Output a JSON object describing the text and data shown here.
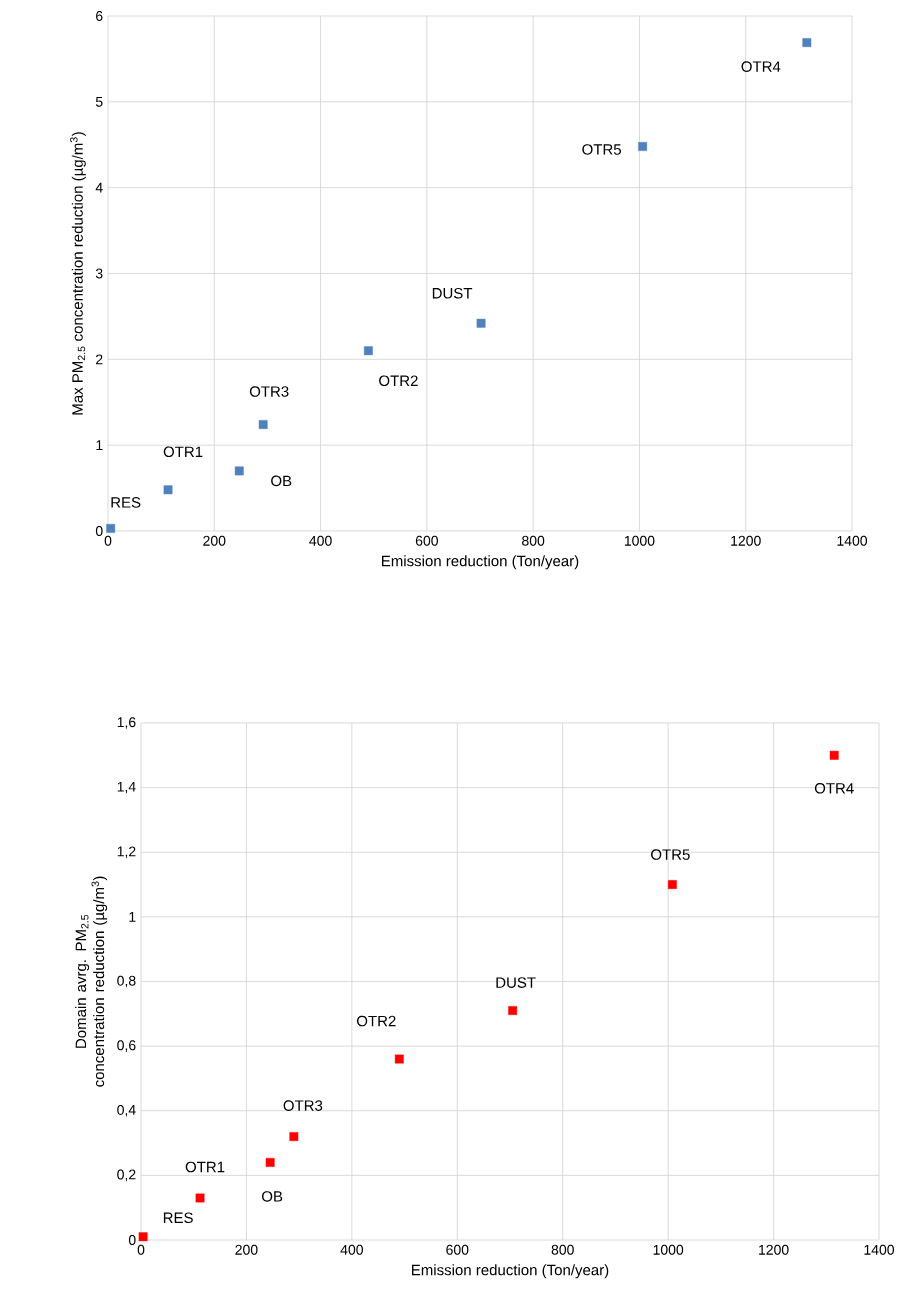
{
  "chart_data": [
    {
      "type": "scatter",
      "xlabel": "Emission reduction (Ton/year)",
      "ylabel": "Max PM$_{2.5}$ concentration reduction (µg/m$^{3}$)",
      "x": [
        5,
        113,
        247,
        292,
        490,
        702,
        1006,
        1315
      ],
      "values": [
        0.03,
        0.48,
        0.7,
        1.24,
        2.1,
        2.42,
        4.48,
        5.69
      ],
      "color": "#4f81bd",
      "marker": "square",
      "grid": true,
      "xlim": [
        0,
        1400
      ],
      "xticks": [
        0,
        200,
        400,
        600,
        800,
        1000,
        1200,
        1400
      ],
      "ylim": [
        0,
        6
      ],
      "yticks": [
        0,
        1,
        2,
        3,
        4,
        5,
        6
      ],
      "annotations": [
        {
          "text": "RES",
          "x": 5,
          "y": 0.03
        },
        {
          "text": "OTR1",
          "x": 113,
          "y": 0.48
        },
        {
          "text": "OB",
          "x": 247,
          "y": 0.7
        },
        {
          "text": "OTR3",
          "x": 292,
          "y": 1.24
        },
        {
          "text": "OTR2",
          "x": 490,
          "y": 2.1
        },
        {
          "text": "DUST",
          "x": 702,
          "y": 2.42
        },
        {
          "text": "OTR5",
          "x": 1006,
          "y": 4.48
        },
        {
          "text": "OTR4",
          "x": 1315,
          "y": 5.69
        }
      ]
    },
    {
      "type": "scatter",
      "xlabel": "Emission reduction (Ton/year)",
      "ylabel": "Domain avrg. PM$_{2.5}$ concentration reduction (µg/m$^{3}$)",
      "x": [
        4,
        112,
        245,
        290,
        490,
        705,
        1008,
        1315
      ],
      "values": [
        0.01,
        0.13,
        0.24,
        0.32,
        0.56,
        0.71,
        1.1,
        1.5
      ],
      "color": "#ff0000",
      "marker": "square",
      "grid": true,
      "xlim": [
        0,
        1400
      ],
      "xticks": [
        0,
        200,
        400,
        600,
        800,
        1000,
        1200,
        1400
      ],
      "ylim": [
        0,
        1.6
      ],
      "yticks": [
        0,
        {
          "value": 0.2,
          "label": "0,2"
        },
        {
          "value": 0.4,
          "label": "0,4"
        },
        {
          "value": 0.6,
          "label": "0,6"
        },
        {
          "value": 0.8,
          "label": "0,8"
        },
        1,
        {
          "value": 1.2,
          "label": "1,2"
        },
        {
          "value": 1.4,
          "label": "1,4"
        },
        {
          "value": 1.6,
          "label": "1,6"
        }
      ],
      "annotations": [
        {
          "text": "RES",
          "x": 4,
          "y": 0.01
        },
        {
          "text": "OTR1",
          "x": 112,
          "y": 0.13
        },
        {
          "text": "OB",
          "x": 245,
          "y": 0.24
        },
        {
          "text": "OTR3",
          "x": 290,
          "y": 0.32
        },
        {
          "text": "OTR2",
          "x": 490,
          "y": 0.56
        },
        {
          "text": "DUST",
          "x": 705,
          "y": 0.71
        },
        {
          "text": "OTR5",
          "x": 1008,
          "y": 1.1
        },
        {
          "text": "OTR4",
          "x": 1315,
          "y": 1.5
        }
      ]
    }
  ]
}
